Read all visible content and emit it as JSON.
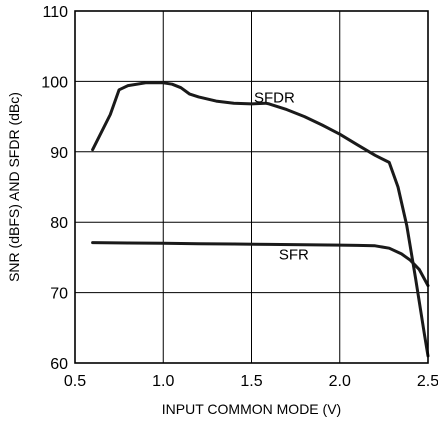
{
  "chart_data": {
    "type": "line",
    "title": "",
    "xlabel": "INPUT COMMON MODE (V)",
    "ylabel": "SNR (dBFS) AND SFDR (dBc)",
    "xlim": [
      0.5,
      2.5
    ],
    "ylim": [
      60,
      110
    ],
    "x_ticks": [
      0.5,
      1.0,
      1.5,
      2.0,
      2.5
    ],
    "x_tick_labels": [
      "0.5",
      "1.0",
      "1.5",
      "2.0",
      "2.5"
    ],
    "y_ticks": [
      60,
      70,
      80,
      90,
      100,
      110
    ],
    "y_tick_labels": [
      "60",
      "70",
      "80",
      "90",
      "100",
      "110"
    ],
    "grid": true,
    "legend": "none",
    "series": [
      {
        "name": "SFDR",
        "label_at": {
          "x": 1.63,
          "y": 97.0
        },
        "x": [
          0.6,
          0.7,
          0.75,
          0.8,
          0.9,
          1.0,
          1.05,
          1.1,
          1.15,
          1.2,
          1.3,
          1.4,
          1.5,
          1.58,
          1.6,
          1.7,
          1.8,
          1.9,
          2.0,
          2.1,
          2.2,
          2.28,
          2.33,
          2.38,
          2.43,
          2.48,
          2.5
        ],
        "values": [
          90.3,
          95.3,
          98.8,
          99.4,
          99.8,
          99.8,
          99.6,
          99.1,
          98.2,
          97.8,
          97.2,
          96.9,
          96.8,
          96.9,
          96.8,
          96.0,
          95.0,
          93.8,
          92.5,
          91.0,
          89.5,
          88.5,
          85.0,
          79.5,
          72.0,
          64.0,
          61.0
        ]
      },
      {
        "name": "SFR",
        "label_at": {
          "x": 1.74,
          "y": 74.7
        },
        "x": [
          0.6,
          0.8,
          1.0,
          1.2,
          1.4,
          1.6,
          1.8,
          2.0,
          2.1,
          2.2,
          2.28,
          2.35,
          2.4,
          2.45,
          2.5
        ],
        "values": [
          77.1,
          77.05,
          77.0,
          76.95,
          76.9,
          76.85,
          76.8,
          76.75,
          76.7,
          76.65,
          76.3,
          75.5,
          74.6,
          73.3,
          71.0
        ]
      }
    ]
  }
}
